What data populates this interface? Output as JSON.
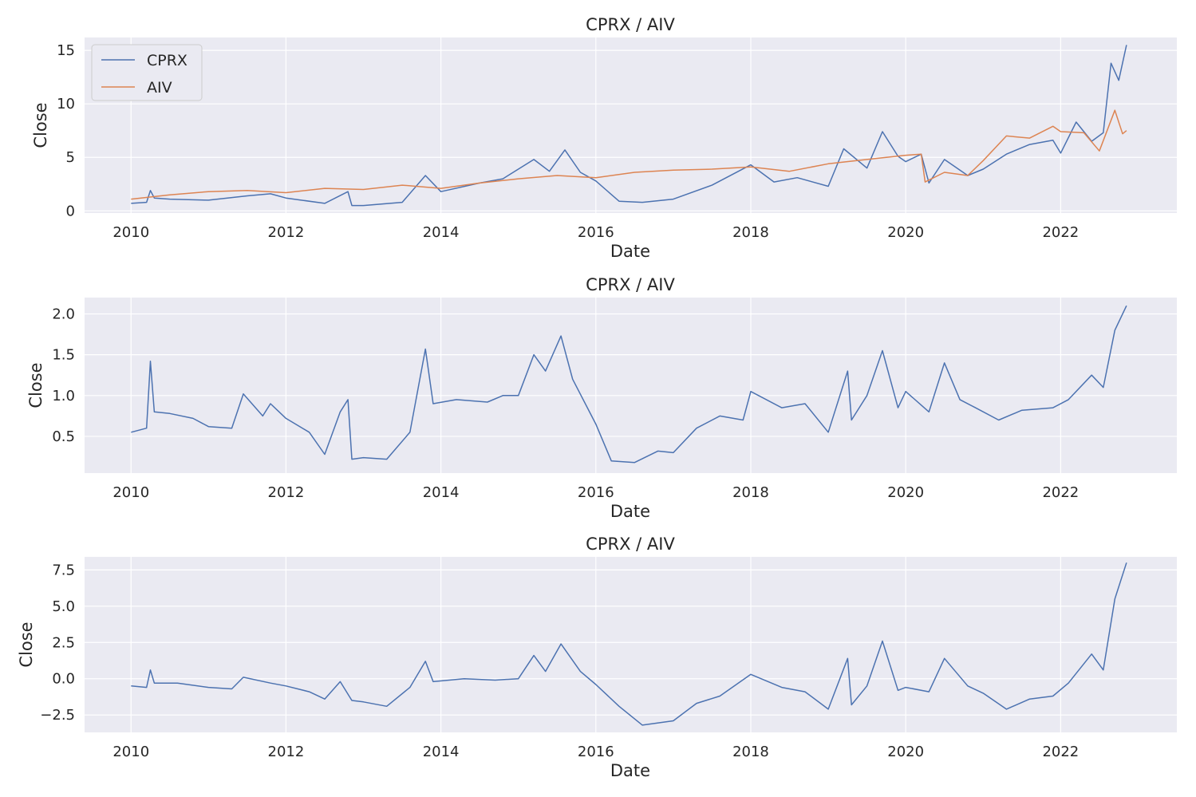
{
  "chart_data": [
    {
      "type": "line",
      "title": "CPRX / AIV",
      "xlabel": "Date",
      "ylabel": "Close",
      "xlim": [
        2009.4,
        2023.5
      ],
      "ylim": [
        -0.2,
        16.2
      ],
      "xticks": [
        2010,
        2012,
        2014,
        2016,
        2018,
        2020,
        2022
      ],
      "xtick_labels": [
        "2010",
        "2012",
        "2014",
        "2016",
        "2018",
        "2020",
        "2022"
      ],
      "yticks": [
        0,
        5,
        10,
        15
      ],
      "ytick_labels": [
        "0",
        "5",
        "10",
        "15"
      ],
      "grid": true,
      "legend": "upper-left",
      "series": [
        {
          "name": "CPRX",
          "color": "#4c72b0",
          "x": [
            2010.0,
            2010.2,
            2010.25,
            2010.3,
            2010.5,
            2011.0,
            2011.5,
            2011.8,
            2012.0,
            2012.5,
            2012.8,
            2012.85,
            2013.0,
            2013.5,
            2013.8,
            2014.0,
            2014.5,
            2014.8,
            2015.2,
            2015.4,
            2015.6,
            2015.8,
            2016.0,
            2016.3,
            2016.6,
            2017.0,
            2017.5,
            2018.0,
            2018.3,
            2018.6,
            2019.0,
            2019.2,
            2019.5,
            2019.7,
            2019.9,
            2020.0,
            2020.2,
            2020.3,
            2020.5,
            2020.8,
            2021.0,
            2021.3,
            2021.6,
            2021.9,
            2022.0,
            2022.2,
            2022.4,
            2022.55,
            2022.65,
            2022.75,
            2022.85
          ],
          "y": [
            0.7,
            0.8,
            1.9,
            1.2,
            1.1,
            1.0,
            1.4,
            1.6,
            1.2,
            0.7,
            1.8,
            0.5,
            0.5,
            0.8,
            3.3,
            1.8,
            2.6,
            3.0,
            4.8,
            3.7,
            5.7,
            3.6,
            2.8,
            0.9,
            0.8,
            1.1,
            2.4,
            4.3,
            2.7,
            3.1,
            2.3,
            5.8,
            4.0,
            7.4,
            5.1,
            4.6,
            5.3,
            2.6,
            4.8,
            3.3,
            3.9,
            5.3,
            6.2,
            6.6,
            5.4,
            8.3,
            6.5,
            7.3,
            13.8,
            12.2,
            15.5
          ]
        },
        {
          "name": "AIV",
          "color": "#dd8452",
          "x": [
            2010.0,
            2010.5,
            2011.0,
            2011.5,
            2012.0,
            2012.5,
            2013.0,
            2013.5,
            2014.0,
            2014.5,
            2015.0,
            2015.5,
            2016.0,
            2016.5,
            2017.0,
            2017.5,
            2018.0,
            2018.5,
            2019.0,
            2019.5,
            2020.0,
            2020.2,
            2020.25,
            2020.5,
            2020.8,
            2021.0,
            2021.3,
            2021.6,
            2021.9,
            2022.0,
            2022.3,
            2022.5,
            2022.7,
            2022.8,
            2022.85
          ],
          "y": [
            1.1,
            1.5,
            1.8,
            1.9,
            1.7,
            2.1,
            2.0,
            2.4,
            2.1,
            2.6,
            3.0,
            3.3,
            3.1,
            3.6,
            3.8,
            3.9,
            4.1,
            3.7,
            4.4,
            4.8,
            5.2,
            5.3,
            2.7,
            3.6,
            3.3,
            4.7,
            7.0,
            6.8,
            7.9,
            7.4,
            7.3,
            5.6,
            9.4,
            7.2,
            7.5
          ]
        }
      ]
    },
    {
      "type": "line",
      "title": "CPRX / AIV",
      "xlabel": "Date",
      "ylabel": "Close",
      "xlim": [
        2009.4,
        2023.5
      ],
      "ylim": [
        0.05,
        2.2
      ],
      "xticks": [
        2010,
        2012,
        2014,
        2016,
        2018,
        2020,
        2022
      ],
      "xtick_labels": [
        "2010",
        "2012",
        "2014",
        "2016",
        "2018",
        "2020",
        "2022"
      ],
      "yticks": [
        0.5,
        1.0,
        1.5,
        2.0
      ],
      "ytick_labels": [
        "0.5",
        "1.0",
        "1.5",
        "2.0"
      ],
      "grid": true,
      "series": [
        {
          "color": "#4c72b0",
          "x": [
            2010.0,
            2010.2,
            2010.25,
            2010.3,
            2010.5,
            2010.8,
            2011.0,
            2011.3,
            2011.45,
            2011.7,
            2011.8,
            2012.0,
            2012.3,
            2012.5,
            2012.7,
            2012.8,
            2012.85,
            2013.0,
            2013.3,
            2013.6,
            2013.8,
            2013.9,
            2014.2,
            2014.6,
            2014.8,
            2015.0,
            2015.2,
            2015.35,
            2015.55,
            2015.7,
            2016.0,
            2016.2,
            2016.5,
            2016.8,
            2017.0,
            2017.3,
            2017.6,
            2017.9,
            2018.0,
            2018.4,
            2018.7,
            2019.0,
            2019.25,
            2019.3,
            2019.5,
            2019.7,
            2019.9,
            2020.0,
            2020.3,
            2020.5,
            2020.7,
            2020.9,
            2021.2,
            2021.5,
            2021.9,
            2022.1,
            2022.4,
            2022.55,
            2022.7,
            2022.85
          ],
          "y": [
            0.55,
            0.6,
            1.42,
            0.8,
            0.78,
            0.72,
            0.62,
            0.6,
            1.02,
            0.75,
            0.9,
            0.72,
            0.55,
            0.28,
            0.8,
            0.95,
            0.22,
            0.24,
            0.22,
            0.55,
            1.57,
            0.9,
            0.95,
            0.92,
            1.0,
            1.0,
            1.5,
            1.3,
            1.73,
            1.2,
            0.65,
            0.2,
            0.18,
            0.32,
            0.3,
            0.6,
            0.75,
            0.7,
            1.05,
            0.85,
            0.9,
            0.55,
            1.3,
            0.7,
            1.0,
            1.55,
            0.85,
            1.05,
            0.8,
            1.4,
            0.95,
            0.85,
            0.7,
            0.82,
            0.85,
            0.95,
            1.25,
            1.1,
            1.8,
            2.1
          ]
        }
      ]
    },
    {
      "type": "line",
      "title": "CPRX / AIV",
      "xlabel": "Date",
      "ylabel": "Close",
      "xlim": [
        2009.4,
        2023.5
      ],
      "ylim": [
        -3.7,
        8.4
      ],
      "xticks": [
        2010,
        2012,
        2014,
        2016,
        2018,
        2020,
        2022
      ],
      "xtick_labels": [
        "2010",
        "2012",
        "2014",
        "2016",
        "2018",
        "2020",
        "2022"
      ],
      "yticks": [
        -2.5,
        0.0,
        2.5,
        5.0,
        7.5
      ],
      "ytick_labels": [
        "−2.5",
        "0.0",
        "2.5",
        "5.0",
        "7.5"
      ],
      "grid": true,
      "series": [
        {
          "color": "#4c72b0",
          "x": [
            2010.0,
            2010.2,
            2010.25,
            2010.3,
            2010.6,
            2011.0,
            2011.3,
            2011.45,
            2011.8,
            2012.0,
            2012.3,
            2012.5,
            2012.7,
            2012.85,
            2013.0,
            2013.3,
            2013.6,
            2013.8,
            2013.9,
            2014.3,
            2014.7,
            2015.0,
            2015.2,
            2015.35,
            2015.55,
            2015.8,
            2016.0,
            2016.3,
            2016.6,
            2017.0,
            2017.3,
            2017.6,
            2018.0,
            2018.4,
            2018.7,
            2019.0,
            2019.25,
            2019.3,
            2019.5,
            2019.7,
            2019.9,
            2020.0,
            2020.3,
            2020.5,
            2020.8,
            2021.0,
            2021.3,
            2021.6,
            2021.9,
            2022.1,
            2022.4,
            2022.55,
            2022.7,
            2022.85
          ],
          "y": [
            -0.5,
            -0.6,
            0.6,
            -0.3,
            -0.3,
            -0.6,
            -0.7,
            0.1,
            -0.3,
            -0.5,
            -0.9,
            -1.4,
            -0.2,
            -1.5,
            -1.6,
            -1.9,
            -0.6,
            1.2,
            -0.2,
            0.0,
            -0.1,
            0.0,
            1.6,
            0.5,
            2.4,
            0.5,
            -0.4,
            -1.9,
            -3.2,
            -2.9,
            -1.7,
            -1.2,
            0.3,
            -0.6,
            -0.9,
            -2.1,
            1.4,
            -1.8,
            -0.5,
            2.6,
            -0.8,
            -0.6,
            -0.9,
            1.4,
            -0.5,
            -1.0,
            -2.1,
            -1.4,
            -1.2,
            -0.3,
            1.7,
            0.6,
            5.5,
            8.0
          ]
        }
      ]
    }
  ]
}
